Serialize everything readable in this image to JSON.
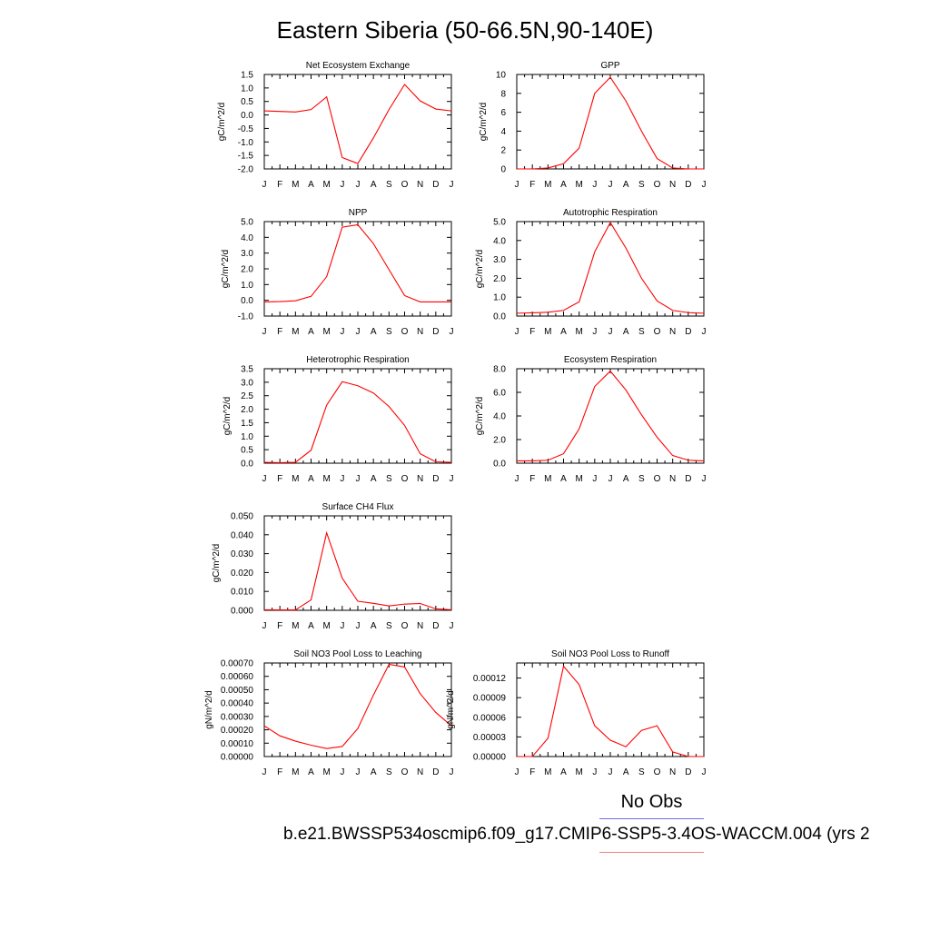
{
  "title": "Eastern Siberia (50-66.5N,90-140E)",
  "legend": {
    "no_obs": "No Obs",
    "case": "b.e21.BWSSP534oscmip6.f09_g17.CMIP6-SSP5-3.4OS-WACCM.004 (yrs 2",
    "obs_color": "#6f6fe8",
    "case_color": "#f08080"
  },
  "colors": {
    "line": "#ff0000",
    "axis": "#000000"
  },
  "chart_data": [
    {
      "type": "line",
      "title": "Net Ecosystem Exchange",
      "ylabel": "gC/m^2/d",
      "categories": [
        "J",
        "F",
        "M",
        "A",
        "M",
        "J",
        "J",
        "A",
        "S",
        "O",
        "N",
        "D",
        "J"
      ],
      "ylim": [
        -2.0,
        1.5
      ],
      "yticks": [
        "1.5",
        "1.0",
        "0.5",
        "0.0",
        "-0.5",
        "-1.0",
        "-1.5",
        "-2.0"
      ],
      "ytick_values": [
        1.5,
        1.0,
        0.5,
        0.0,
        -0.5,
        -1.0,
        -1.5,
        -2.0
      ],
      "values": [
        0.15,
        0.13,
        0.11,
        0.2,
        0.67,
        -1.58,
        -1.8,
        -0.85,
        0.2,
        1.13,
        0.52,
        0.22,
        0.15
      ]
    },
    {
      "type": "line",
      "title": "GPP",
      "ylabel": "gC/m^2/d",
      "categories": [
        "J",
        "F",
        "M",
        "A",
        "M",
        "J",
        "J",
        "A",
        "S",
        "O",
        "N",
        "D",
        "J"
      ],
      "ylim": [
        0,
        10
      ],
      "yticks": [
        "10",
        "8",
        "6",
        "4",
        "2",
        "0"
      ],
      "ytick_values": [
        10,
        8,
        6,
        4,
        2,
        0
      ],
      "values": [
        0.0,
        0.0,
        0.1,
        0.55,
        2.2,
        8.0,
        9.7,
        7.2,
        4.0,
        1.1,
        0.1,
        0.0,
        0.0
      ]
    },
    {
      "type": "line",
      "title": "NPP",
      "ylabel": "gC/m^2/d",
      "categories": [
        "J",
        "F",
        "M",
        "A",
        "M",
        "J",
        "J",
        "A",
        "S",
        "O",
        "N",
        "D",
        "J"
      ],
      "ylim": [
        -1.0,
        5.0
      ],
      "yticks": [
        "5.0",
        "4.0",
        "3.0",
        "2.0",
        "1.0",
        "0.0",
        "-1.0"
      ],
      "ytick_values": [
        5.0,
        4.0,
        3.0,
        2.0,
        1.0,
        0.0,
        -1.0
      ],
      "values": [
        -0.1,
        -0.08,
        -0.03,
        0.25,
        1.5,
        4.65,
        4.8,
        3.6,
        1.95,
        0.3,
        -0.1,
        -0.1,
        -0.1
      ]
    },
    {
      "type": "line",
      "title": "Autotrophic Respiration",
      "ylabel": "gC/m^2/d",
      "categories": [
        "J",
        "F",
        "M",
        "A",
        "M",
        "J",
        "J",
        "A",
        "S",
        "O",
        "N",
        "D",
        "J"
      ],
      "ylim": [
        0,
        5.0
      ],
      "yticks": [
        "5.0",
        "4.0",
        "3.0",
        "2.0",
        "1.0",
        "0.0"
      ],
      "ytick_values": [
        5.0,
        4.0,
        3.0,
        2.0,
        1.0,
        0.0
      ],
      "values": [
        0.15,
        0.17,
        0.2,
        0.3,
        0.75,
        3.4,
        4.95,
        3.6,
        2.0,
        0.8,
        0.3,
        0.18,
        0.15
      ]
    },
    {
      "type": "line",
      "title": "Heterotrophic Respiration",
      "ylabel": "gC/m^2/d",
      "categories": [
        "J",
        "F",
        "M",
        "A",
        "M",
        "J",
        "J",
        "A",
        "S",
        "O",
        "N",
        "D",
        "J"
      ],
      "ylim": [
        0,
        3.5
      ],
      "yticks": [
        "3.5",
        "3.0",
        "2.5",
        "2.0",
        "1.5",
        "1.0",
        "0.5",
        "0.0"
      ],
      "ytick_values": [
        3.5,
        3.0,
        2.5,
        2.0,
        1.5,
        1.0,
        0.5,
        0.0
      ],
      "values": [
        0.03,
        0.02,
        0.03,
        0.48,
        2.15,
        3.02,
        2.87,
        2.6,
        2.1,
        1.4,
        0.35,
        0.05,
        0.03
      ]
    },
    {
      "type": "line",
      "title": "Ecosystem Respiration",
      "ylabel": "gC/m^2/d",
      "categories": [
        "J",
        "F",
        "M",
        "A",
        "M",
        "J",
        "J",
        "A",
        "S",
        "O",
        "N",
        "D",
        "J"
      ],
      "ylim": [
        0,
        8.0
      ],
      "yticks": [
        "8.0",
        "6.0",
        "4.0",
        "2.0",
        "0.0"
      ],
      "ytick_values": [
        8.0,
        6.0,
        4.0,
        2.0,
        0.0
      ],
      "values": [
        0.2,
        0.2,
        0.25,
        0.8,
        2.9,
        6.5,
        7.8,
        6.2,
        4.1,
        2.2,
        0.65,
        0.25,
        0.2
      ]
    },
    {
      "type": "line",
      "title": "Surface CH4 Flux",
      "ylabel": "gC/m^2/d",
      "categories": [
        "J",
        "F",
        "M",
        "A",
        "M",
        "J",
        "J",
        "A",
        "S",
        "O",
        "N",
        "D",
        "J"
      ],
      "ylim": [
        0,
        0.05
      ],
      "yticks": [
        "0.050",
        "0.040",
        "0.030",
        "0.020",
        "0.010",
        "0.000"
      ],
      "ytick_values": [
        0.05,
        0.04,
        0.03,
        0.02,
        0.01,
        0.0
      ],
      "values": [
        0.0003,
        0.0002,
        0.0002,
        0.0055,
        0.041,
        0.017,
        0.0048,
        0.0037,
        0.0023,
        0.0033,
        0.0036,
        0.0008,
        0.0003
      ]
    },
    {
      "type": "line",
      "title": "Soil NO3 Pool Loss to Leaching",
      "ylabel": "gN/m^2/d",
      "categories": [
        "J",
        "F",
        "M",
        "A",
        "M",
        "J",
        "J",
        "A",
        "S",
        "O",
        "N",
        "D",
        "J"
      ],
      "ylim": [
        0,
        0.0007
      ],
      "yticks": [
        "0.00070",
        "0.00060",
        "0.00050",
        "0.00040",
        "0.00030",
        "0.00020",
        "0.00010",
        "0.00000"
      ],
      "ytick_values": [
        0.0007,
        0.0006,
        0.0005,
        0.0004,
        0.0003,
        0.0002,
        0.0001,
        0.0
      ],
      "values": [
        0.00023,
        0.000155,
        0.000115,
        8.5e-05,
        6e-05,
        7.5e-05,
        0.00021,
        0.00046,
        0.00069,
        0.00067,
        0.00047,
        0.00033,
        0.00023
      ]
    },
    {
      "type": "line",
      "title": "Soil NO3 Pool Loss to Runoff",
      "ylabel": "gN/m^2/d",
      "categories": [
        "J",
        "F",
        "M",
        "A",
        "M",
        "J",
        "J",
        "A",
        "S",
        "O",
        "N",
        "D",
        "J"
      ],
      "ylim": [
        0,
        0.000143
      ],
      "yticks": [
        "0.00012",
        "0.00009",
        "0.00006",
        "0.00003",
        "0.00000"
      ],
      "ytick_values": [
        0.00012,
        9e-05,
        6e-05,
        3e-05,
        0.0
      ],
      "values": [
        0.0,
        0.0,
        2.8e-05,
        0.000138,
        0.00011,
        4.7e-05,
        2.5e-05,
        1.5e-05,
        4e-05,
        4.7e-05,
        7e-06,
        0.0,
        0.0
      ]
    }
  ]
}
